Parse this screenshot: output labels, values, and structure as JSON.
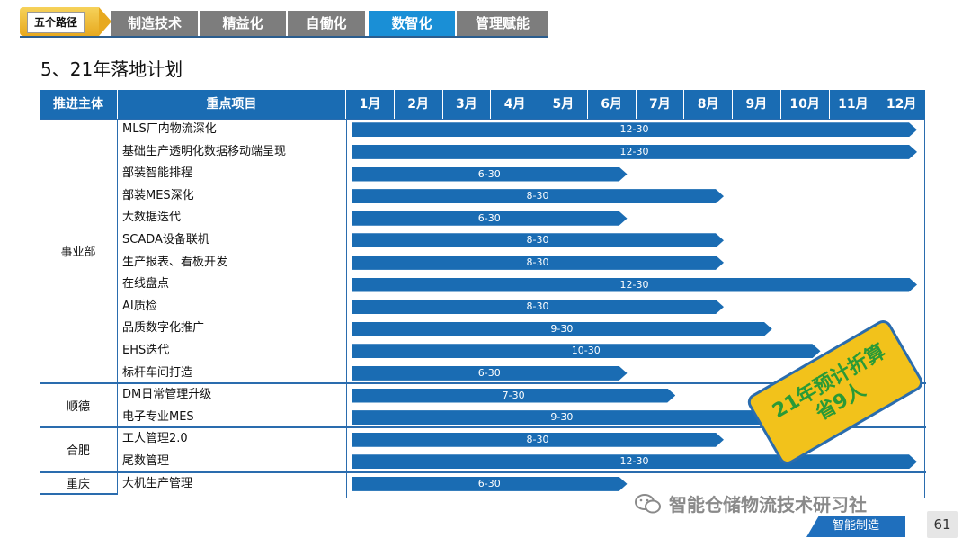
{
  "nav": {
    "first": "五个路径",
    "tabs": [
      "制造技术",
      "精益化",
      "自働化",
      "数智化",
      "管理赋能"
    ],
    "active_tab": "数智化"
  },
  "title": "5、21年落地计划",
  "table": {
    "headers": {
      "owner": "推进主体",
      "project": "重点项目",
      "months": [
        "1月",
        "2月",
        "3月",
        "4月",
        "5月",
        "6月",
        "7月",
        "8月",
        "9月",
        "10月",
        "11月",
        "12月"
      ]
    },
    "groups": [
      {
        "name": "事业部",
        "rows": 12
      },
      {
        "name": "顺德",
        "rows": 2
      },
      {
        "name": "合肥",
        "rows": 2
      },
      {
        "name": "重庆",
        "rows": 1
      }
    ],
    "rows": [
      {
        "project": "MLS厂内物流深化",
        "end_month": 12,
        "label": "12-30"
      },
      {
        "project": "基础生产透明化数据移动端呈现",
        "end_month": 12,
        "label": "12-30"
      },
      {
        "project": "部装智能排程",
        "end_month": 6,
        "label": "6-30"
      },
      {
        "project": "部装MES深化",
        "end_month": 8,
        "label": "8-30"
      },
      {
        "project": "大数据迭代",
        "end_month": 6,
        "label": "6-30"
      },
      {
        "project": "SCADA设备联机",
        "end_month": 8,
        "label": "8-30"
      },
      {
        "project": "生产报表、看板开发",
        "end_month": 8,
        "label": "8-30"
      },
      {
        "project": "在线盘点",
        "end_month": 12,
        "label": "12-30"
      },
      {
        "project": "AI质检",
        "end_month": 8,
        "label": "8-30"
      },
      {
        "project": "品质数字化推广",
        "end_month": 9,
        "label": "9-30"
      },
      {
        "project": "EHS迭代",
        "end_month": 10,
        "label": "10-30"
      },
      {
        "project": "标杆车间打造",
        "end_month": 6,
        "label": "6-30"
      },
      {
        "project": "DM日常管理升级",
        "end_month": 7,
        "label": "7-30"
      },
      {
        "project": "电子专业MES",
        "end_month": 9,
        "label": "9-30"
      },
      {
        "project": "工人管理2.0",
        "end_month": 8,
        "label": "8-30"
      },
      {
        "project": "尾数管理",
        "end_month": 12,
        "label": "12-30"
      },
      {
        "project": "大机生产管理",
        "end_month": 6,
        "label": "6-30"
      }
    ]
  },
  "badge": {
    "line1": "21年预计折算",
    "line2": "省9人"
  },
  "watermark": "智能仓储物流技术研习社",
  "footer": {
    "tag": "智能制造",
    "page": "61"
  },
  "colors": {
    "bar": "#1a6cb3",
    "header": "#1a6cb3",
    "badge": "#f2c21b",
    "badge_text": "#2a9a36",
    "nav_active": "#1a8fd6",
    "nav_inactive": "#7d7d7d"
  }
}
